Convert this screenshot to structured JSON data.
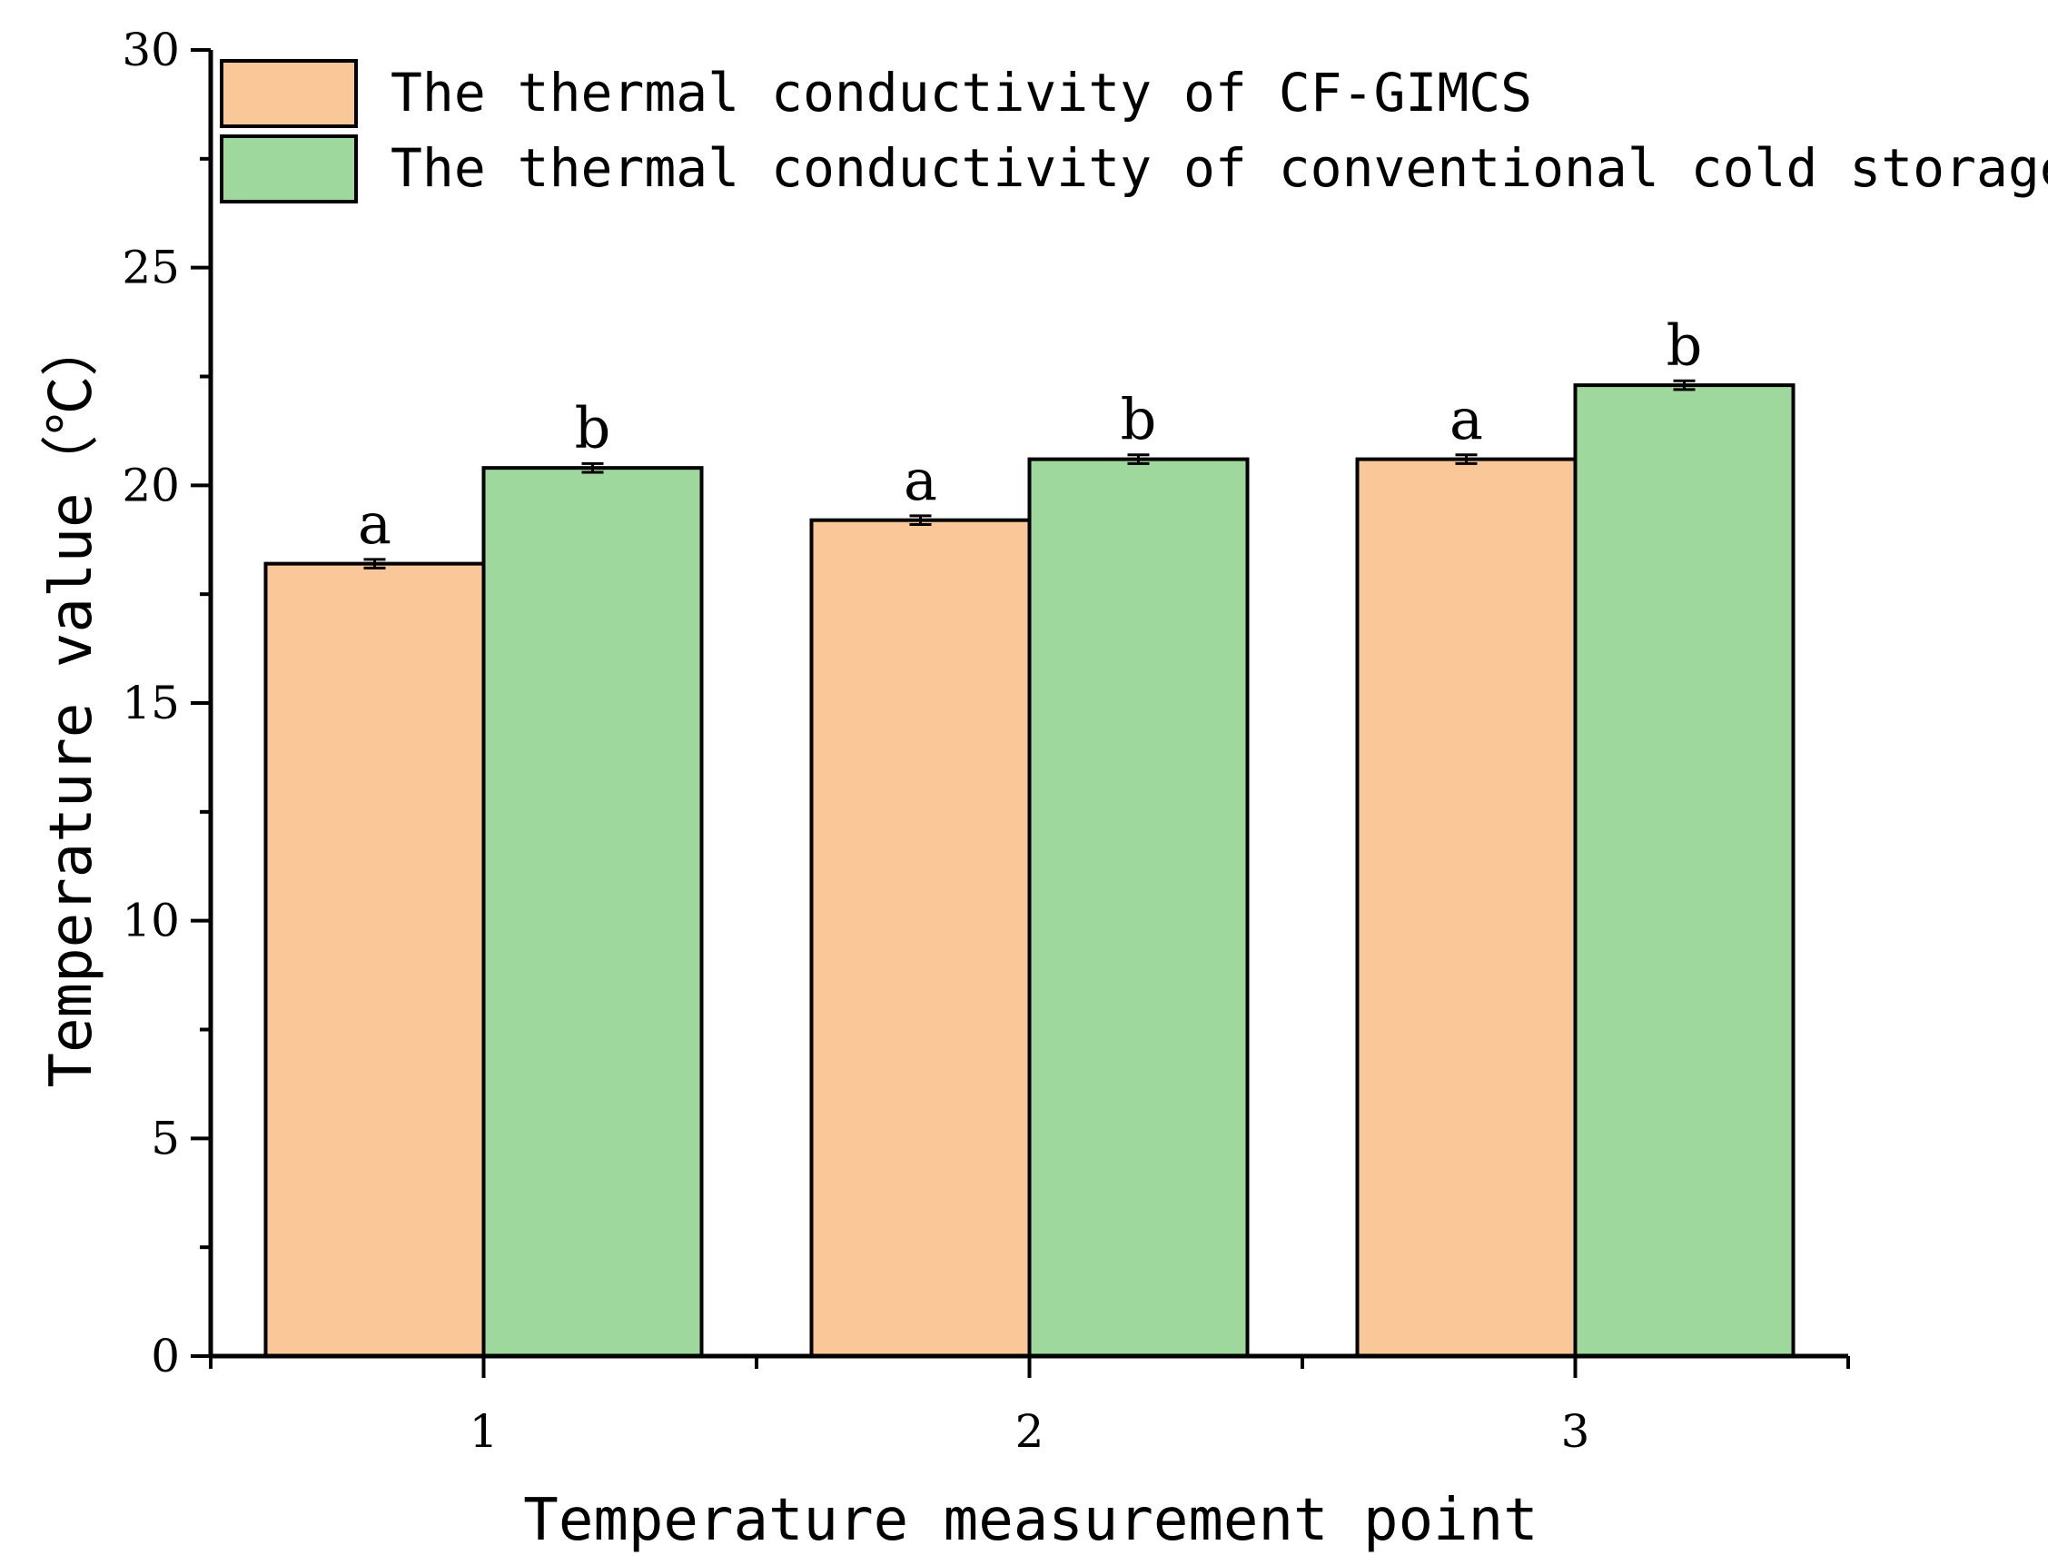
{
  "chart_data": {
    "type": "bar",
    "categories": [
      "1",
      "2",
      "3"
    ],
    "series": [
      {
        "name": "The thermal conductivity of CF-GIMCS",
        "color": "#FAC898",
        "values": [
          18.2,
          19.2,
          20.6
        ],
        "errors": [
          0.1,
          0.1,
          0.1
        ],
        "labels": [
          "a",
          "a",
          "a"
        ]
      },
      {
        "name": "The thermal conductivity of conventional cold storage",
        "color": "#9ED89C",
        "values": [
          20.4,
          20.6,
          22.3
        ],
        "errors": [
          0.1,
          0.1,
          0.1
        ],
        "labels": [
          "b",
          "b",
          "b"
        ]
      }
    ],
    "xlabel": "Temperature measurement point",
    "ylabel": "Temperature value（℃）",
    "ylim": [
      0,
      30
    ],
    "yticks": [
      "0",
      "5",
      "10",
      "15",
      "20",
      "25",
      "30"
    ],
    "legend_position": "top-left",
    "grid": false
  }
}
